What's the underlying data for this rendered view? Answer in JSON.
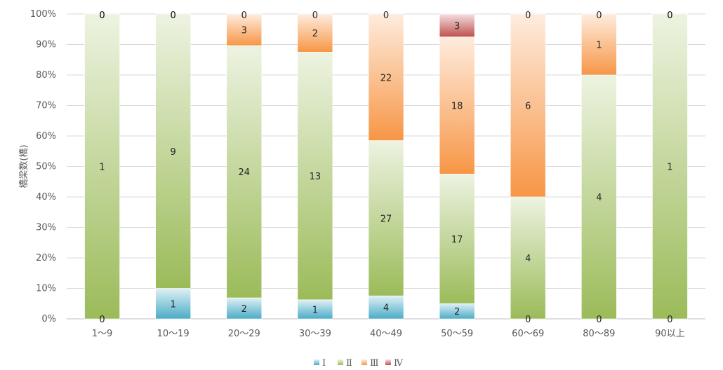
{
  "chart_data": {
    "type": "bar",
    "stacked": "percent",
    "ylabel": "橋梁数(橋)",
    "ylim": [
      0,
      100
    ],
    "y_ticks": [
      "0%",
      "10%",
      "20%",
      "30%",
      "40%",
      "50%",
      "60%",
      "70%",
      "80%",
      "90%",
      "100%"
    ],
    "grid": true,
    "legend_position": "bottom",
    "categories": [
      "1～9",
      "10～19",
      "20～29",
      "30～39",
      "40～49",
      "50～59",
      "60～69",
      "80～89",
      "90以上"
    ],
    "series": [
      {
        "name": "Ⅰ",
        "values": [
          0,
          1,
          2,
          1,
          4,
          2,
          0,
          0,
          0
        ],
        "color": "#4bacc6"
      },
      {
        "name": "Ⅱ",
        "values": [
          1,
          9,
          24,
          13,
          27,
          17,
          4,
          4,
          1
        ],
        "color": "#9bbb59"
      },
      {
        "name": "Ⅲ",
        "values": [
          0,
          0,
          3,
          2,
          22,
          18,
          6,
          1,
          0
        ],
        "color": "#f79646"
      },
      {
        "name": "Ⅳ",
        "values": [
          0,
          0,
          0,
          0,
          0,
          3,
          0,
          0,
          0
        ],
        "color": "#c0504d"
      }
    ],
    "data_labels": [
      [
        "0",
        "1",
        "2",
        "1",
        "4",
        "2",
        "0",
        "0",
        "0"
      ],
      [
        "1",
        "9",
        "24",
        "13",
        "27",
        "17",
        "4",
        "4",
        "1"
      ],
      [
        "0",
        "0",
        "3",
        "2",
        "22",
        "18",
        "6",
        "1",
        "0"
      ],
      [
        "0",
        "0",
        "0",
        "0",
        "0",
        "3",
        "0",
        "0",
        "0"
      ]
    ]
  }
}
